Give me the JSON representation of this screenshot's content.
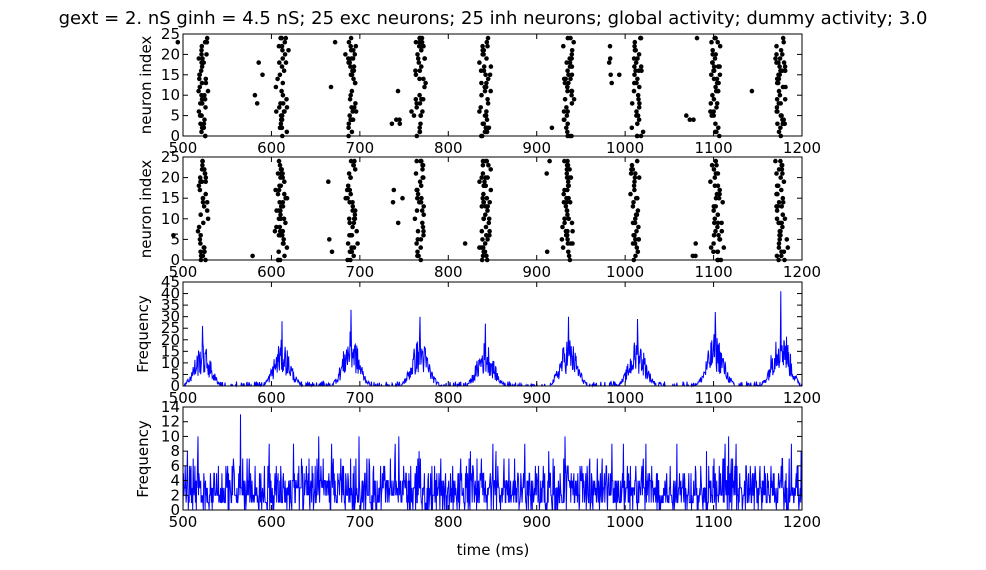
{
  "colors": {
    "background": "#ffffff",
    "spike": "#000000",
    "rate": "#0000ff",
    "axes": "#000000"
  },
  "chart_data": {
    "title": "gext = 2. nS ginh = 4.5 nS; 25 exc neurons; 25 inh neurons; global activity; dummy activity; 3.0",
    "xlabel": "time (ms)",
    "xlim": [
      500,
      1200
    ],
    "xticks": [
      "500",
      "600",
      "700",
      "800",
      "900",
      "1000",
      "1100",
      "1200"
    ],
    "panels": [
      {
        "type": "scatter",
        "ylabel": "neuron index",
        "ylim": [
          0,
          25
        ],
        "yticks": [
          "0",
          "5",
          "10",
          "15",
          "20",
          "25"
        ],
        "burst_centers_ms": [
          522,
          612,
          690,
          768,
          842,
          936,
          1014,
          1102,
          1176
        ],
        "neuron_ids": [
          0,
          1,
          2,
          3,
          4,
          5,
          6,
          7,
          8,
          9,
          10,
          11,
          12,
          13,
          14,
          15,
          16,
          17,
          18,
          19,
          20,
          21,
          22,
          23,
          24
        ]
      },
      {
        "type": "scatter",
        "ylabel": "neuron index",
        "ylim": [
          0,
          25
        ],
        "yticks": [
          "0",
          "5",
          "10",
          "15",
          "20",
          "25"
        ],
        "burst_centers_ms": [
          522,
          610,
          690,
          768,
          842,
          934,
          1012,
          1104,
          1176
        ],
        "neuron_ids": [
          0,
          1,
          2,
          3,
          4,
          5,
          6,
          7,
          8,
          9,
          10,
          11,
          12,
          13,
          14,
          15,
          16,
          17,
          18,
          19,
          20,
          21,
          22,
          23,
          24
        ]
      },
      {
        "type": "line",
        "ylabel": "Frequency",
        "ylim": [
          0,
          45
        ],
        "yticks": [
          "0",
          "5",
          "10",
          "15",
          "20",
          "25",
          "30",
          "35",
          "40",
          "45"
        ],
        "peak_times_ms": [
          522,
          612,
          690,
          768,
          842,
          936,
          1014,
          1102,
          1176
        ],
        "peak_values": [
          26,
          28,
          33,
          30,
          27,
          30,
          29,
          32,
          41
        ]
      },
      {
        "type": "line",
        "ylabel": "Frequency",
        "ylim": [
          0,
          14
        ],
        "yticks": [
          "0",
          "2",
          "4",
          "6",
          "8",
          "10",
          "12",
          "14"
        ],
        "baseline_range": [
          0,
          8
        ],
        "max_value": 13,
        "max_time_ms": 565
      }
    ]
  }
}
